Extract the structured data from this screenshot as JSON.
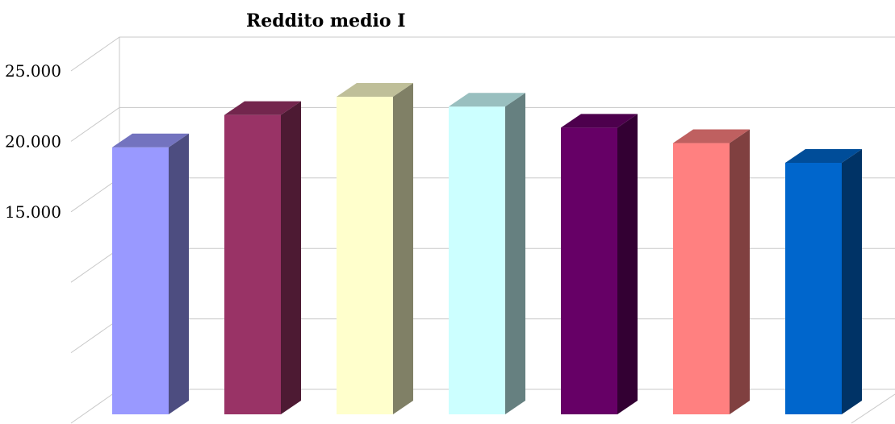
{
  "chart_data": {
    "type": "bar",
    "title": "Reddito medio I",
    "xlabel": "",
    "ylabel": "",
    "ylim": [
      0,
      25000
    ],
    "y_ticks": [
      {
        "value": 0,
        "label": ""
      },
      {
        "value": 5000,
        "label": ""
      },
      {
        "value": 10000,
        "label": ""
      },
      {
        "value": 15000,
        "label": "15.000"
      },
      {
        "value": 20000,
        "label": "20.000"
      },
      {
        "value": 25000,
        "label": "25.000"
      }
    ],
    "categories": [
      "",
      "",
      "",
      "",
      "",
      "",
      ""
    ],
    "values": [
      19000,
      21300,
      22600,
      21900,
      20400,
      19300,
      17900
    ],
    "colors": [
      "#9999ff",
      "#993366",
      "#ffffcc",
      "#ccffff",
      "#660066",
      "#ff8080",
      "#0066cc"
    ],
    "grid": true,
    "legend": "none",
    "style": "3d-columns"
  }
}
